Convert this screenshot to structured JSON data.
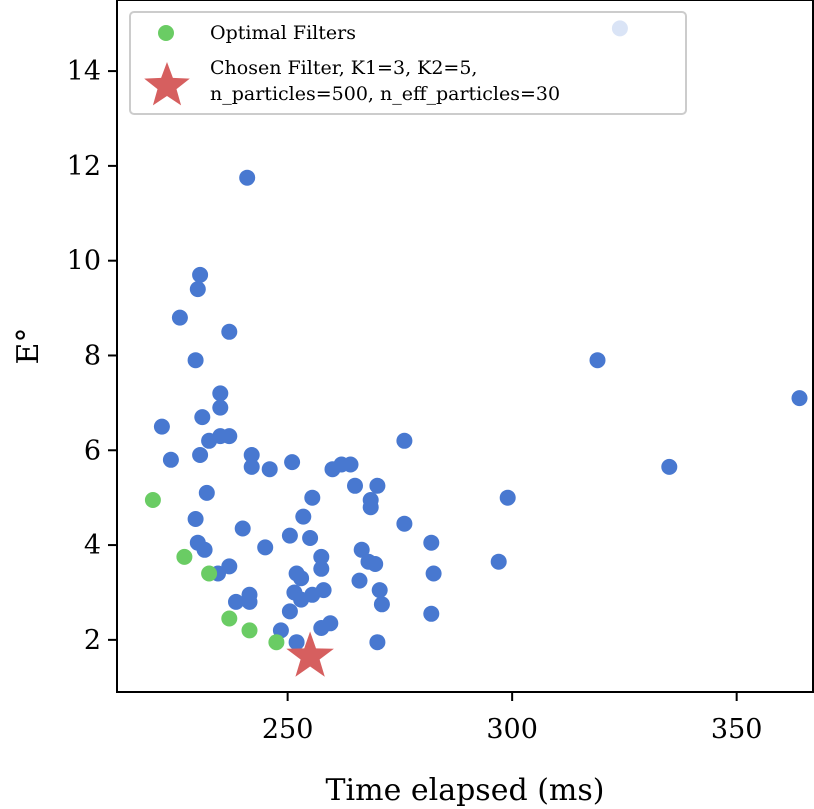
{
  "chart_data": {
    "type": "scatter",
    "xlabel": "Time elapsed (ms)",
    "ylabel": "E°",
    "xlim": [
      212,
      367
    ],
    "ylim": [
      0.9,
      15.5
    ],
    "xticks": [
      250,
      300,
      350
    ],
    "yticks": [
      2,
      4,
      6,
      8,
      10,
      12,
      14
    ],
    "grid": false,
    "legend_position": "top-left",
    "series": [
      {
        "name": "",
        "color": "#4878d0",
        "marker": "circle",
        "points": [
          [
            324,
            14.9
          ],
          [
            241,
            11.75
          ],
          [
            230.5,
            9.7
          ],
          [
            230,
            9.4
          ],
          [
            226,
            8.8
          ],
          [
            237,
            8.5
          ],
          [
            229.5,
            7.9
          ],
          [
            319,
            7.9
          ],
          [
            364,
            7.1
          ],
          [
            235,
            7.2
          ],
          [
            235,
            6.9
          ],
          [
            231,
            6.7
          ],
          [
            222,
            6.5
          ],
          [
            235,
            6.3
          ],
          [
            237,
            6.3
          ],
          [
            232.5,
            6.2
          ],
          [
            242,
            5.9
          ],
          [
            230.5,
            5.9
          ],
          [
            276,
            6.2
          ],
          [
            224,
            5.8
          ],
          [
            251,
            5.75
          ],
          [
            242,
            5.65
          ],
          [
            246,
            5.6
          ],
          [
            260,
            5.6
          ],
          [
            262,
            5.7
          ],
          [
            264,
            5.7
          ],
          [
            335,
            5.65
          ],
          [
            232,
            5.1
          ],
          [
            265,
            5.25
          ],
          [
            270,
            5.25
          ],
          [
            255.5,
            5.0
          ],
          [
            268.5,
            4.95
          ],
          [
            268.5,
            4.8
          ],
          [
            299,
            5.0
          ],
          [
            253.5,
            4.6
          ],
          [
            229.5,
            4.55
          ],
          [
            240,
            4.35
          ],
          [
            276,
            4.45
          ],
          [
            250.5,
            4.2
          ],
          [
            255,
            4.15
          ],
          [
            230,
            4.05
          ],
          [
            282,
            4.05
          ],
          [
            231.5,
            3.9
          ],
          [
            245,
            3.95
          ],
          [
            266.5,
            3.9
          ],
          [
            257.5,
            3.75
          ],
          [
            268,
            3.65
          ],
          [
            269.5,
            3.6
          ],
          [
            297,
            3.65
          ],
          [
            237,
            3.55
          ],
          [
            252,
            3.4
          ],
          [
            257.5,
            3.5
          ],
          [
            234.5,
            3.4
          ],
          [
            253,
            3.3
          ],
          [
            266,
            3.25
          ],
          [
            282.5,
            3.4
          ],
          [
            251.5,
            3.0
          ],
          [
            255.5,
            2.95
          ],
          [
            258,
            3.05
          ],
          [
            270.5,
            3.05
          ],
          [
            241.5,
            2.95
          ],
          [
            238.5,
            2.8
          ],
          [
            241.5,
            2.8
          ],
          [
            253,
            2.85
          ],
          [
            271,
            2.75
          ],
          [
            250.5,
            2.6
          ],
          [
            282,
            2.55
          ],
          [
            259.5,
            2.35
          ],
          [
            257.5,
            2.25
          ],
          [
            248.5,
            2.2
          ],
          [
            270,
            1.95
          ],
          [
            252,
            1.95
          ]
        ]
      },
      {
        "name": "Optimal Filters",
        "color": "#6acc64",
        "marker": "circle",
        "points": [
          [
            220,
            4.95
          ],
          [
            227,
            3.75
          ],
          [
            232.5,
            3.4
          ],
          [
            237,
            2.45
          ],
          [
            241.5,
            2.2
          ],
          [
            247.5,
            1.95
          ]
        ]
      },
      {
        "name": "Chosen Filter, K1=3, K2=5,\nn_particles=500, n_eff_particles=30",
        "legend_lines": [
          "Chosen Filter, K1=3, K2=5,",
          "n_particles=500, n_eff_particles=30"
        ],
        "color": "#d65f5f",
        "marker": "star",
        "points": [
          [
            255,
            1.65
          ]
        ]
      }
    ]
  }
}
